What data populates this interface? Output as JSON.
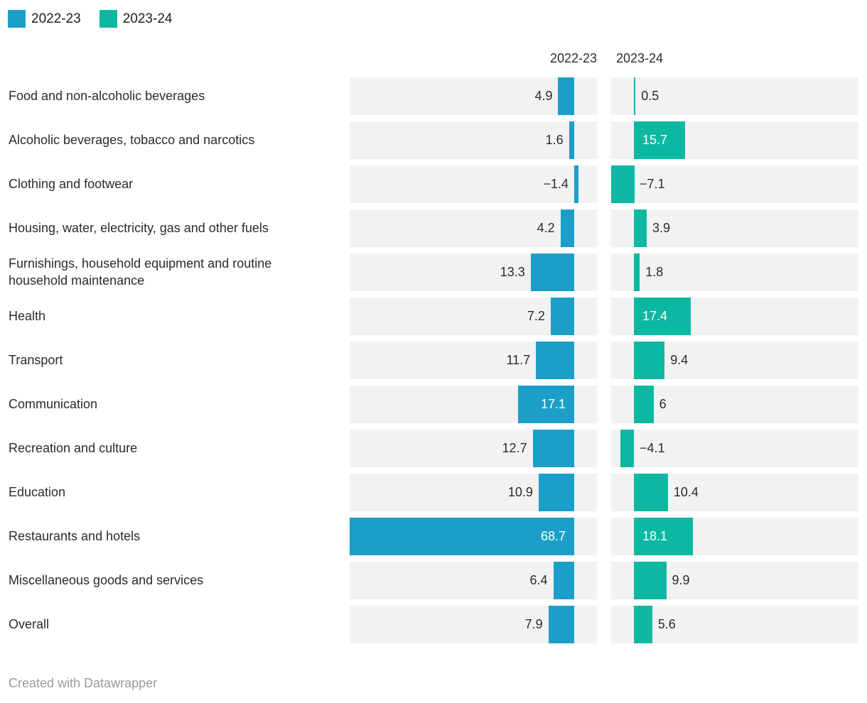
{
  "legend": {
    "items": [
      {
        "label": "2022-23",
        "color": "#1b9fc8"
      },
      {
        "label": "2023-24",
        "color": "#0db8a2"
      }
    ]
  },
  "columns": {
    "left": "2022-23",
    "right": "2023-24"
  },
  "footer": {
    "attribution": "Created with Datawrapper"
  },
  "colors": {
    "series_2022_23": "#1b9fc8",
    "series_2023_24": "#0db8a2",
    "row_background": "#f2f2f2",
    "text": "#2b2b2b",
    "value_label_inside": "#ffffff",
    "footer_text": "#9b9b9b"
  },
  "chart_data": {
    "type": "bar",
    "orientation": "horizontal",
    "legend_position": "top",
    "grid": false,
    "categories": [
      "Food and non-alcoholic beverages",
      "Alcoholic beverages, tobacco and narcotics",
      "Clothing and footwear",
      "Housing, water, electricity, gas and other fuels",
      "Furnishings, household equipment and routine household maintenance",
      "Health",
      "Transport",
      "Communication",
      "Recreation and culture",
      "Education",
      "Restaurants and hotels",
      "Miscellaneous goods and services",
      "Overall"
    ],
    "series": [
      {
        "name": "2022-23",
        "values": [
          4.9,
          1.6,
          -1.4,
          4.2,
          13.3,
          7.2,
          11.7,
          17.1,
          12.7,
          10.9,
          68.7,
          6.4,
          7.9
        ],
        "labels": [
          "4.9",
          "1.6",
          "−1.4",
          "4.2",
          "13.3",
          "7.2",
          "11.7",
          "17.1",
          "12.7",
          "10.9",
          "68.7",
          "6.4",
          "7.9"
        ]
      },
      {
        "name": "2023-24",
        "values": [
          0.5,
          15.7,
          -7.1,
          3.9,
          1.8,
          17.4,
          9.4,
          6,
          -4.1,
          10.4,
          18.1,
          9.9,
          5.6
        ],
        "labels": [
          "0.5",
          "15.7",
          "−7.1",
          "3.9",
          "1.8",
          "17.4",
          "9.4",
          "6",
          "−4.1",
          "10.4",
          "18.1",
          "9.9",
          "5.6"
        ]
      }
    ],
    "value_at_full_width": 68.7
  }
}
